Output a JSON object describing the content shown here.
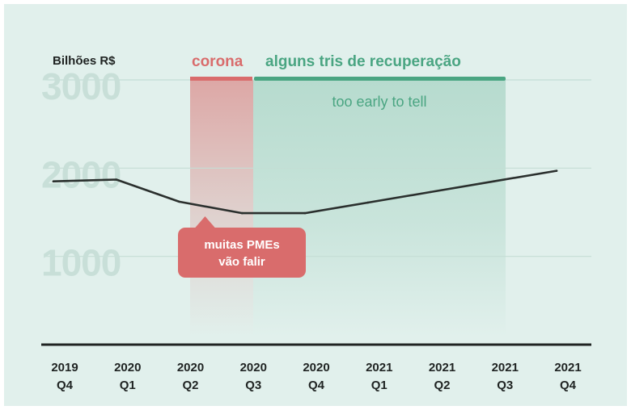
{
  "chart_data": {
    "type": "line",
    "ylabel": "Bilhões R$",
    "ylim": [
      0,
      3000
    ],
    "yticks": [
      "3000",
      "2000",
      "1000"
    ],
    "grid": true,
    "categories": [
      "2019 Q4",
      "2020 Q1",
      "2020 Q2",
      "2020 Q3",
      "2020 Q4",
      "2021 Q1",
      "2021 Q2",
      "2021 Q3",
      "2021 Q4"
    ],
    "category_lines": [
      [
        "2019",
        "Q4"
      ],
      [
        "2020",
        "Q1"
      ],
      [
        "2020",
        "Q2"
      ],
      [
        "2020",
        "Q3"
      ],
      [
        "2020",
        "Q4"
      ],
      [
        "2021",
        "Q1"
      ],
      [
        "2021",
        "Q2"
      ],
      [
        "2021",
        "Q3"
      ],
      [
        "2021",
        "Q4"
      ]
    ],
    "series": [
      {
        "values": [
          1850,
          1870,
          1620,
          1490,
          1490,
          1610,
          1730,
          1850,
          1970
        ]
      }
    ],
    "periods": [
      {
        "label": "corona",
        "from": "2020 Q2",
        "to": "2020 Q3",
        "color": "#d96c6c"
      },
      {
        "label": "alguns tris de recuperação",
        "sublabel": "too early to tell",
        "from": "2020 Q3",
        "to": "2021 Q3",
        "color": "#4aa582"
      }
    ],
    "annotation": {
      "lines": [
        "muitas PMEs",
        "vão falir"
      ],
      "at": "2020 Q2",
      "color": "#d96c6c"
    }
  },
  "colors": {
    "background": "#e1f0ec",
    "line": "#2a2f2d",
    "tick_label": "#c8dfd8",
    "grid": "#c4ddd5",
    "corona": "#d96c6c",
    "recovery": "#4aa582"
  }
}
